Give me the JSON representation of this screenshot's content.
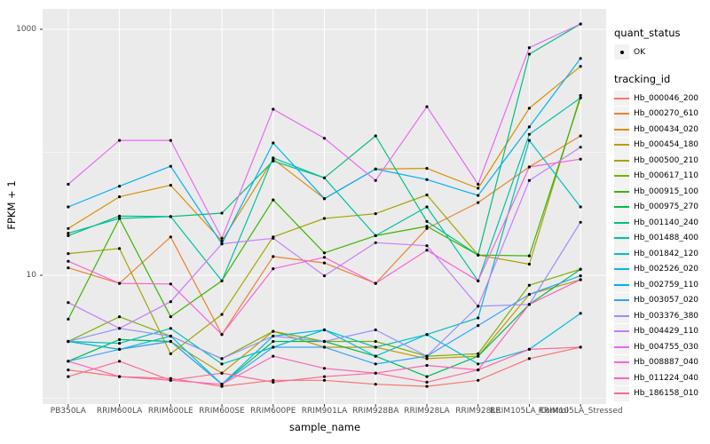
{
  "figure": {
    "background": "#FFFFFF",
    "panel_background": "#EBEBEB",
    "grid_color": "#FFFFFF",
    "point_color": "#000000",
    "tick_color": "#333333",
    "tick_text_color": "#4D4D4D"
  },
  "axes": {
    "x_title": "sample_name",
    "y_title": "FPKM + 1",
    "y_tick_labels": [
      "1000",
      "10"
    ],
    "y_tick_values": [
      1000,
      10
    ]
  },
  "legend": {
    "quant_title": "quant_status",
    "quant_items": [
      {
        "label": "OK",
        "symbol": "point"
      }
    ],
    "tracking_title": "tracking_id"
  },
  "chart_data": {
    "type": "line",
    "title": "",
    "xlabel": "sample_name",
    "ylabel": "FPKM + 1",
    "y_scale": "log10",
    "y_axis_breaks": [
      10,
      1000
    ],
    "y_axis_minor_breaks": [
      1,
      100
    ],
    "ylim_approx": [
      0.9,
      1450
    ],
    "grid": true,
    "legend_position": "right",
    "point_shape": "filled-circle",
    "categories": [
      "PB350LA",
      "RRIM600LA",
      "RRIM600LE",
      "RRIM600SE",
      "RRIM600PE",
      "RRIM901LA",
      "RRIM928BA",
      "RRIM928LA",
      "RRIM928LE",
      "RRIM105LA_Control",
      "RRIM105LA_Stressed"
    ],
    "series": [
      {
        "name": "Hb_000046_200",
        "color": "#F8766D",
        "values": [
          1.7,
          1.5,
          1.45,
          1.25,
          1.4,
          1.4,
          1.3,
          1.25,
          1.4,
          2.1,
          2.6
        ]
      },
      {
        "name": "Hb_000270_610",
        "color": "#EA8331",
        "values": [
          11.5,
          8.6,
          20.5,
          3.3,
          14.2,
          12.6,
          8.6,
          24,
          39,
          76,
          136
        ]
      },
      {
        "name": "Hb_000434_020",
        "color": "#D89000",
        "values": [
          24,
          43.5,
          54,
          19,
          88,
          42,
          73,
          74,
          51,
          228,
          500
        ]
      },
      {
        "name": "Hb_000454_180",
        "color": "#C09B00",
        "values": [
          2.9,
          2.5,
          2.9,
          1.6,
          3.5,
          2.6,
          2.6,
          2.1,
          2.2,
          7.0,
          9.2
        ]
      },
      {
        "name": "Hb_000500_210",
        "color": "#A3A500",
        "values": [
          15,
          16.5,
          2.3,
          4.8,
          20.5,
          29,
          31.7,
          45,
          14.6,
          12.3,
          290
        ]
      },
      {
        "name": "Hb_000617_110",
        "color": "#7CAE00",
        "values": [
          2.9,
          4.6,
          3.2,
          2.1,
          3.5,
          2.9,
          2.9,
          2.2,
          2.3,
          8.3,
          11.2
        ]
      },
      {
        "name": "Hb_000915_100",
        "color": "#39B600",
        "values": [
          4.4,
          29,
          4.6,
          9.0,
          41,
          15.2,
          21,
          25,
          14.6,
          14.4,
          277
        ]
      },
      {
        "name": "Hb_000975_270",
        "color": "#00BB4E",
        "values": [
          2.0,
          3.0,
          2.9,
          1.3,
          2.9,
          2.9,
          2.2,
          1.5,
          2.2,
          5.8,
          11.2
        ]
      },
      {
        "name": "Hb_001140_240",
        "color": "#00BF7D",
        "values": [
          21,
          30.3,
          30,
          32,
          85,
          62,
          136,
          27.4,
          14.6,
          628,
          1104
        ]
      },
      {
        "name": "Hb_001488_400",
        "color": "#00C1A3",
        "values": [
          22,
          29,
          30,
          9.0,
          90,
          62,
          21,
          36,
          9.0,
          140,
          277
        ]
      },
      {
        "name": "Hb_001842_120",
        "color": "#00BFC4",
        "values": [
          2.9,
          2.8,
          3.7,
          1.9,
          2.6,
          3.6,
          2.6,
          3.3,
          4.5,
          125,
          36
        ]
      },
      {
        "name": "Hb_002526_020",
        "color": "#00BAE0",
        "values": [
          2.9,
          2.5,
          3.2,
          1.3,
          3.2,
          3.6,
          2.2,
          3.3,
          1.9,
          2.5,
          4.9
        ]
      },
      {
        "name": "Hb_002759_110",
        "color": "#00B0F6",
        "values": [
          36,
          53,
          77,
          18,
          119,
          42,
          73,
          60,
          44.6,
          161,
          580
        ]
      },
      {
        "name": "Hb_003057_020",
        "color": "#35A2FF",
        "values": [
          2.0,
          2.5,
          2.9,
          1.3,
          2.6,
          2.6,
          1.9,
          2.2,
          3.9,
          7.0,
          9.9
        ]
      },
      {
        "name": "Hb_003376_380",
        "color": "#9590FF",
        "values": [
          2.9,
          3.7,
          3.2,
          2.1,
          3.2,
          2.9,
          3.6,
          2.2,
          5.6,
          5.8,
          27
        ]
      },
      {
        "name": "Hb_004429_110",
        "color": "#C77CFF",
        "values": [
          6.0,
          3.7,
          6.1,
          18,
          20,
          9.9,
          18.4,
          17.4,
          5.6,
          59,
          110
        ]
      },
      {
        "name": "Hb_004755_030",
        "color": "#E76BF3",
        "values": [
          55,
          125,
          125,
          20,
          224,
          130,
          59,
          235,
          55,
          709,
          1104
        ]
      },
      {
        "name": "Hb_008887_040",
        "color": "#FA62DB",
        "values": [
          13,
          8.6,
          8.5,
          3.3,
          11.3,
          14,
          8.6,
          16,
          9.0,
          76,
          88
        ]
      },
      {
        "name": "Hb_011224_040",
        "color": "#FF62BC",
        "values": [
          2.0,
          1.5,
          1.4,
          1.3,
          2.2,
          1.75,
          1.6,
          1.85,
          1.7,
          5.8,
          9.2
        ]
      },
      {
        "name": "Hb_186158_010",
        "color": "#FF6A98",
        "values": [
          1.5,
          2.0,
          1.4,
          1.6,
          1.35,
          1.5,
          1.6,
          1.35,
          1.7,
          2.5,
          2.6
        ]
      }
    ]
  }
}
